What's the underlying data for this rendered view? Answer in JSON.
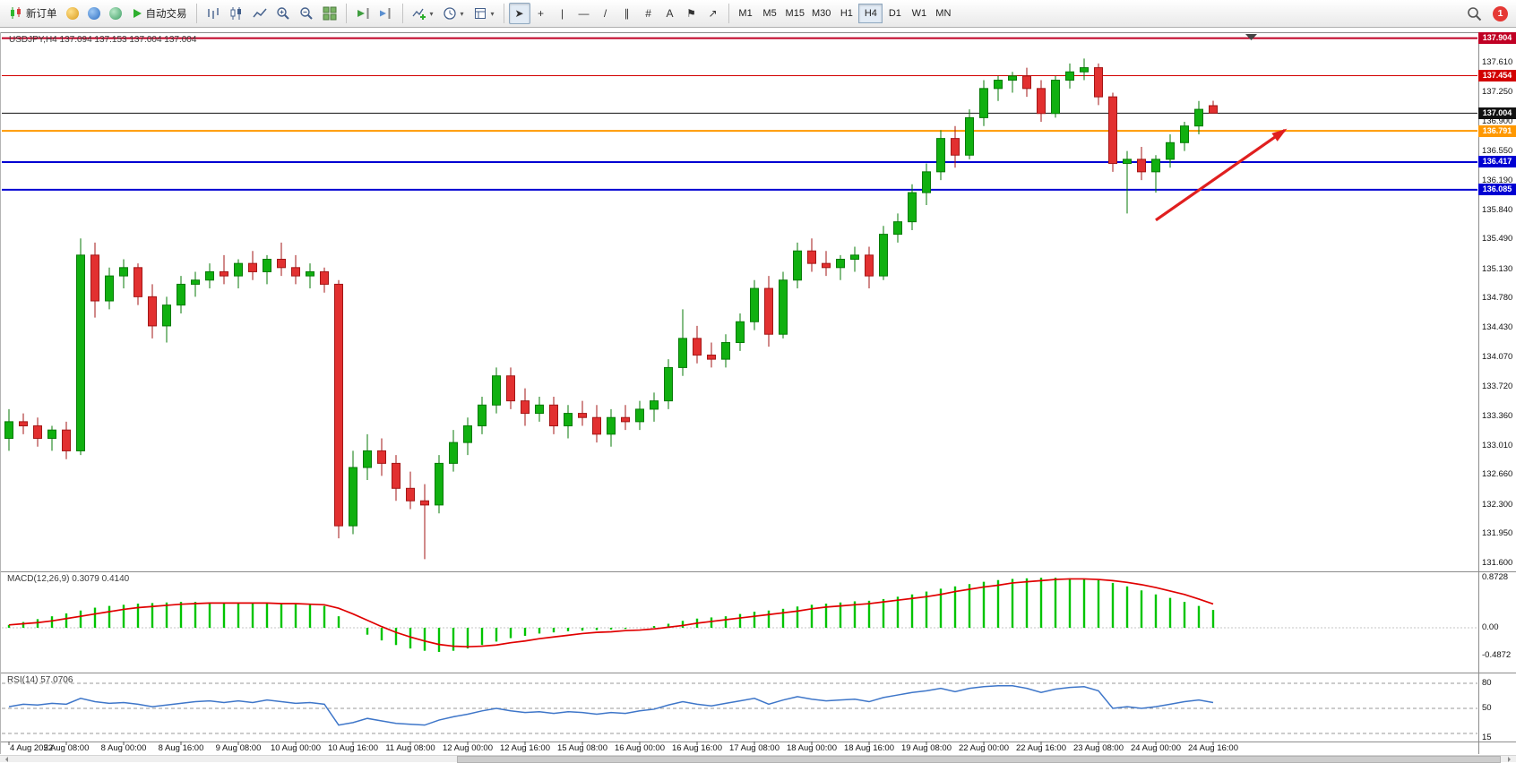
{
  "toolbar": {
    "new_order_label": "新订单",
    "autotrade_label": "自动交易",
    "tools": [
      {
        "name": "cursor-tool",
        "glyph": "➤"
      },
      {
        "name": "crosshair-tool",
        "glyph": "+"
      },
      {
        "name": "vertical-line-tool",
        "glyph": "|"
      },
      {
        "name": "horizontal-line-tool",
        "glyph": "—"
      },
      {
        "name": "trendline-tool",
        "glyph": "/"
      },
      {
        "name": "channel-tool",
        "glyph": "∥"
      },
      {
        "name": "fibonacci-tool",
        "glyph": "#"
      },
      {
        "name": "text-tool",
        "glyph": "A"
      },
      {
        "name": "label-tool",
        "glyph": "⚑"
      },
      {
        "name": "arrows-tool",
        "glyph": "↗"
      }
    ],
    "active_tool": "cursor-tool",
    "timeframes": [
      "M1",
      "M5",
      "M15",
      "M30",
      "H1",
      "H4",
      "D1",
      "W1",
      "MN"
    ],
    "active_timeframe": "H4",
    "notification_count": "1"
  },
  "chart": {
    "title": "USDJPY,H4 137.094 137.153 137.004 137.004",
    "symbol": "USDJPY",
    "period": "H4"
  },
  "chart_data": {
    "type": "candlestick",
    "price_axis": [
      "137.610",
      "137.250",
      "136.900",
      "136.550",
      "136.190",
      "135.840",
      "135.490",
      "135.130",
      "134.780",
      "134.430",
      "134.070",
      "133.720",
      "133.360",
      "133.010",
      "132.660",
      "132.300",
      "131.950",
      "131.600"
    ],
    "hlines": [
      {
        "price": 137.904,
        "label": "137.904",
        "color": "#c00024",
        "width": 2
      },
      {
        "price": 137.454,
        "label": "137.454",
        "color": "#d20000",
        "width": 1
      },
      {
        "price": 137.004,
        "label": "137.004",
        "color": "#111111",
        "width": 1,
        "current": true
      },
      {
        "price": 136.791,
        "label": "136.791",
        "color": "#ff9800",
        "width": 2
      },
      {
        "price": 136.417,
        "label": "136.417",
        "color": "#0000d2",
        "width": 2
      },
      {
        "price": 136.085,
        "label": "136.085",
        "color": "#0000d2",
        "width": 2
      }
    ],
    "current_ohlc": {
      "open": "137.094",
      "high": "137.153",
      "low": "137.004",
      "close": "137.004"
    },
    "colors": {
      "up": "#10b010",
      "up_border": "#077a07",
      "down": "#e23030",
      "down_border": "#a31616"
    },
    "candles": [
      [
        133.1,
        133.45,
        132.95,
        133.3
      ],
      [
        133.3,
        133.4,
        133.15,
        133.25
      ],
      [
        133.25,
        133.35,
        133.0,
        133.1
      ],
      [
        133.1,
        133.25,
        132.95,
        133.2
      ],
      [
        133.2,
        133.3,
        132.85,
        132.95
      ],
      [
        132.95,
        135.5,
        132.9,
        135.3
      ],
      [
        135.3,
        135.45,
        134.55,
        134.75
      ],
      [
        134.75,
        135.15,
        134.65,
        135.05
      ],
      [
        135.05,
        135.25,
        134.9,
        135.15
      ],
      [
        135.15,
        135.2,
        134.7,
        134.8
      ],
      [
        134.8,
        134.95,
        134.3,
        134.45
      ],
      [
        134.45,
        134.8,
        134.25,
        134.7
      ],
      [
        134.7,
        135.05,
        134.6,
        134.95
      ],
      [
        134.95,
        135.1,
        134.8,
        135.0
      ],
      [
        135.0,
        135.2,
        134.9,
        135.1
      ],
      [
        135.1,
        135.3,
        134.95,
        135.05
      ],
      [
        135.05,
        135.25,
        134.9,
        135.2
      ],
      [
        135.2,
        135.35,
        135.0,
        135.1
      ],
      [
        135.1,
        135.3,
        134.95,
        135.25
      ],
      [
        135.25,
        135.45,
        135.05,
        135.15
      ],
      [
        135.15,
        135.3,
        134.95,
        135.05
      ],
      [
        135.05,
        135.2,
        134.9,
        135.1
      ],
      [
        135.1,
        135.15,
        134.85,
        134.95
      ],
      [
        134.95,
        135.0,
        131.9,
        132.05
      ],
      [
        132.05,
        132.95,
        131.95,
        132.75
      ],
      [
        132.75,
        133.15,
        132.6,
        132.95
      ],
      [
        132.95,
        133.1,
        132.65,
        132.8
      ],
      [
        132.8,
        132.9,
        132.35,
        132.5
      ],
      [
        132.5,
        132.7,
        132.25,
        132.35
      ],
      [
        132.35,
        132.55,
        131.65,
        132.3
      ],
      [
        132.3,
        132.9,
        132.2,
        132.8
      ],
      [
        132.8,
        133.2,
        132.7,
        133.05
      ],
      [
        133.05,
        133.35,
        132.9,
        133.25
      ],
      [
        133.25,
        133.6,
        133.15,
        133.5
      ],
      [
        133.5,
        133.95,
        133.4,
        133.85
      ],
      [
        133.85,
        133.95,
        133.45,
        133.55
      ],
      [
        133.55,
        133.7,
        133.25,
        133.4
      ],
      [
        133.4,
        133.6,
        133.3,
        133.5
      ],
      [
        133.5,
        133.6,
        133.15,
        133.25
      ],
      [
        133.25,
        133.5,
        133.1,
        133.4
      ],
      [
        133.4,
        133.55,
        133.25,
        133.35
      ],
      [
        133.35,
        133.5,
        133.05,
        133.15
      ],
      [
        133.15,
        133.45,
        133.0,
        133.35
      ],
      [
        133.35,
        133.5,
        133.2,
        133.3
      ],
      [
        133.3,
        133.55,
        133.2,
        133.45
      ],
      [
        133.45,
        133.65,
        133.3,
        133.55
      ],
      [
        133.55,
        134.05,
        133.45,
        133.95
      ],
      [
        133.95,
        134.65,
        133.85,
        134.3
      ],
      [
        134.3,
        134.45,
        134.0,
        134.1
      ],
      [
        134.1,
        134.25,
        133.95,
        134.05
      ],
      [
        134.05,
        134.35,
        133.95,
        134.25
      ],
      [
        134.25,
        134.6,
        134.15,
        134.5
      ],
      [
        134.5,
        135.0,
        134.4,
        134.9
      ],
      [
        134.9,
        135.05,
        134.2,
        134.35
      ],
      [
        134.35,
        135.1,
        134.3,
        135.0
      ],
      [
        135.0,
        135.45,
        134.9,
        135.35
      ],
      [
        135.35,
        135.5,
        135.1,
        135.2
      ],
      [
        135.2,
        135.35,
        135.05,
        135.15
      ],
      [
        135.15,
        135.3,
        135.0,
        135.25
      ],
      [
        135.25,
        135.4,
        135.1,
        135.3
      ],
      [
        135.3,
        135.4,
        134.9,
        135.05
      ],
      [
        135.05,
        135.65,
        135.0,
        135.55
      ],
      [
        135.55,
        135.8,
        135.45,
        135.7
      ],
      [
        135.7,
        136.15,
        135.6,
        136.05
      ],
      [
        136.05,
        136.4,
        135.9,
        136.3
      ],
      [
        136.3,
        136.8,
        136.2,
        136.7
      ],
      [
        136.7,
        136.85,
        136.35,
        136.5
      ],
      [
        136.5,
        137.05,
        136.45,
        136.95
      ],
      [
        136.95,
        137.4,
        136.85,
        137.3
      ],
      [
        137.3,
        137.45,
        137.15,
        137.4
      ],
      [
        137.4,
        137.5,
        137.25,
        137.45
      ],
      [
        137.45,
        137.55,
        137.2,
        137.3
      ],
      [
        137.3,
        137.4,
        136.9,
        137.0
      ],
      [
        137.0,
        137.45,
        136.95,
        137.4
      ],
      [
        137.4,
        137.6,
        137.3,
        137.5
      ],
      [
        137.5,
        137.66,
        137.4,
        137.55
      ],
      [
        137.55,
        137.6,
        137.1,
        137.2
      ],
      [
        137.2,
        137.25,
        136.3,
        136.4
      ],
      [
        136.4,
        136.55,
        135.8,
        136.45
      ],
      [
        136.45,
        136.6,
        136.2,
        136.3
      ],
      [
        136.3,
        136.5,
        136.05,
        136.45
      ],
      [
        136.45,
        136.75,
        136.35,
        136.65
      ],
      [
        136.65,
        136.9,
        136.55,
        136.85
      ],
      [
        136.85,
        137.15,
        136.75,
        137.05
      ],
      [
        137.094,
        137.153,
        137.004,
        137.004
      ]
    ],
    "time_axis": [
      "4 Aug 2022",
      "5 Aug 08:00",
      "8 Aug 00:00",
      "8 Aug 16:00",
      "9 Aug 08:00",
      "10 Aug 00:00",
      "10 Aug 16:00",
      "11 Aug 08:00",
      "12 Aug 00:00",
      "12 Aug 16:00",
      "15 Aug 08:00",
      "16 Aug 00:00",
      "16 Aug 16:00",
      "17 Aug 08:00",
      "18 Aug 00:00",
      "18 Aug 16:00",
      "19 Aug 08:00",
      "22 Aug 00:00",
      "22 Aug 16:00",
      "23 Aug 08:00",
      "24 Aug 00:00",
      "24 Aug 16:00"
    ],
    "arrow": {
      "from": {
        "index": 80,
        "price": 135.72
      },
      "to": {
        "index": 89,
        "price": 136.8
      },
      "color": "#e01f1f"
    }
  },
  "indicators": {
    "macd": {
      "display": "MACD(12,26,9) 0.3079 0.4140",
      "name": "MACD(12,26,9)",
      "value_main": "0.3079",
      "value_signal": "0.4140",
      "axis": [
        "0.8728",
        "0.00",
        "-0.4872"
      ],
      "histogram_color": "#00c400",
      "signal_color": "#e00000",
      "histogram": [
        0.05,
        0.1,
        0.15,
        0.2,
        0.25,
        0.3,
        0.35,
        0.38,
        0.4,
        0.42,
        0.43,
        0.44,
        0.45,
        0.45,
        0.44,
        0.44,
        0.43,
        0.43,
        0.42,
        0.42,
        0.41,
        0.4,
        0.38,
        0.2,
        0.0,
        -0.12,
        -0.22,
        -0.3,
        -0.36,
        -0.4,
        -0.42,
        -0.4,
        -0.36,
        -0.3,
        -0.24,
        -0.18,
        -0.14,
        -0.1,
        -0.08,
        -0.06,
        -0.05,
        -0.04,
        -0.03,
        -0.02,
        0.0,
        0.03,
        0.07,
        0.12,
        0.16,
        0.18,
        0.2,
        0.24,
        0.28,
        0.3,
        0.33,
        0.37,
        0.4,
        0.42,
        0.44,
        0.46,
        0.47,
        0.5,
        0.54,
        0.58,
        0.63,
        0.68,
        0.72,
        0.76,
        0.8,
        0.83,
        0.85,
        0.86,
        0.87,
        0.87,
        0.86,
        0.85,
        0.83,
        0.78,
        0.72,
        0.65,
        0.58,
        0.52,
        0.45,
        0.38,
        0.31
      ],
      "signal": [
        0.05,
        0.07,
        0.09,
        0.12,
        0.16,
        0.2,
        0.24,
        0.28,
        0.32,
        0.35,
        0.37,
        0.39,
        0.41,
        0.42,
        0.43,
        0.43,
        0.43,
        0.43,
        0.43,
        0.42,
        0.42,
        0.41,
        0.4,
        0.34,
        0.24,
        0.13,
        0.02,
        -0.08,
        -0.16,
        -0.23,
        -0.29,
        -0.32,
        -0.33,
        -0.32,
        -0.3,
        -0.26,
        -0.23,
        -0.19,
        -0.16,
        -0.13,
        -0.1,
        -0.08,
        -0.07,
        -0.05,
        -0.04,
        -0.02,
        0.01,
        0.04,
        0.08,
        0.11,
        0.14,
        0.17,
        0.2,
        0.23,
        0.26,
        0.29,
        0.33,
        0.36,
        0.38,
        0.4,
        0.42,
        0.45,
        0.48,
        0.51,
        0.54,
        0.58,
        0.63,
        0.67,
        0.71,
        0.74,
        0.78,
        0.8,
        0.82,
        0.84,
        0.85,
        0.85,
        0.84,
        0.82,
        0.79,
        0.75,
        0.7,
        0.64,
        0.58,
        0.5,
        0.414
      ]
    },
    "rsi": {
      "display": "RSI(14) 57.0706",
      "name": "RSI(14)",
      "value": "57.0706",
      "axis": [
        "80",
        "50",
        "15"
      ],
      "levels": [
        80,
        50,
        20
      ],
      "line_color": "#3e76c9",
      "values": [
        52,
        55,
        54,
        56,
        55,
        62,
        58,
        56,
        57,
        55,
        52,
        54,
        56,
        58,
        59,
        57,
        59,
        57,
        60,
        58,
        56,
        57,
        55,
        30,
        33,
        38,
        35,
        32,
        31,
        30,
        36,
        40,
        43,
        47,
        50,
        47,
        45,
        46,
        44,
        46,
        45,
        43,
        45,
        44,
        47,
        49,
        54,
        58,
        55,
        53,
        56,
        59,
        62,
        55,
        60,
        64,
        61,
        59,
        60,
        61,
        58,
        63,
        66,
        69,
        71,
        74,
        70,
        74,
        76,
        77,
        77,
        74,
        69,
        73,
        75,
        76,
        71,
        50,
        52,
        50,
        52,
        55,
        58,
        60,
        57
      ]
    }
  }
}
